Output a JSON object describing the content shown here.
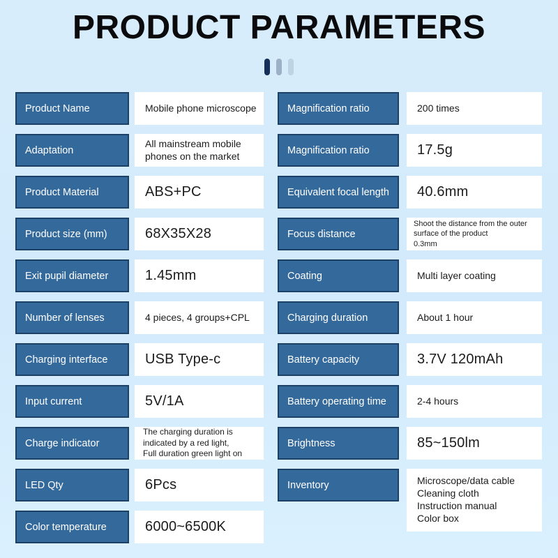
{
  "title": "PRODUCT PARAMETERS",
  "columns": {
    "left": {
      "rows": [
        {
          "label": "Product Name",
          "value": "Mobile phone microscope"
        },
        {
          "label": "Adaptation",
          "value": "All mainstream mobile\nphones on the market"
        },
        {
          "label": "Product Material",
          "value": "ABS+PC"
        },
        {
          "label": "Product size (mm)",
          "value": "68X35X28"
        },
        {
          "label": "Exit pupil diameter",
          "value": "1.45mm"
        },
        {
          "label": "Number of lenses",
          "value": "4 pieces, 4 groups+CPL"
        },
        {
          "label": "Charging interface",
          "value": "USB Type-c"
        },
        {
          "label": "Input current",
          "value": "5V/1A"
        },
        {
          "label": "Charge indicator",
          "value": "The charging duration is\nindicated by a red light,\nFull duration green light on"
        },
        {
          "label": "LED Qty",
          "value": "6Pcs"
        },
        {
          "label": "Color temperature",
          "value": "6000~6500K"
        }
      ]
    },
    "right": {
      "rows": [
        {
          "label": "Magnification ratio",
          "value": "200 times"
        },
        {
          "label": "Magnification ratio",
          "value": "17.5g"
        },
        {
          "label": "Equivalent focal length",
          "value": "40.6mm"
        },
        {
          "label": "Focus distance",
          "value": "Shoot the distance from the outer\nsurface of the product\n0.3mm"
        },
        {
          "label": "Coating",
          "value": "Multi layer coating"
        },
        {
          "label": "Charging duration",
          "value": "About 1 hour"
        },
        {
          "label": "Battery capacity",
          "value": "3.7V 120mAh"
        },
        {
          "label": "Battery operating time",
          "value": "2-4 hours"
        },
        {
          "label": "Brightness",
          "value": "85~150lm"
        },
        {
          "label": "Inventory",
          "value": "Microscope/data cable\nCleaning cloth\nInstruction manual\nColor box"
        }
      ]
    }
  },
  "colors": {
    "label_bg": "#34699c",
    "label_border": "#1d4166",
    "value_bg": "#ffffff",
    "background": "#d5ebfc",
    "bar_dark": "#14305a",
    "bar_medium": "#9cb1c6",
    "bar_light": "#bed3e3"
  }
}
